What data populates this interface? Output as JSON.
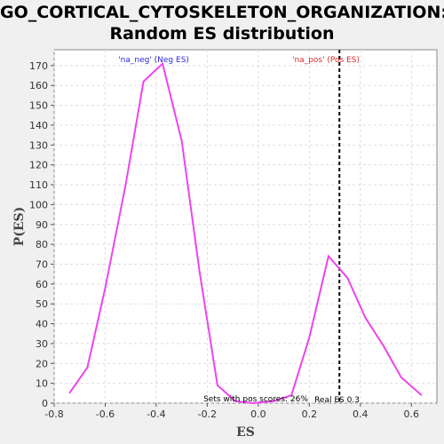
{
  "chart_data": {
    "type": "line",
    "title_line1": "GO_CORTICAL_CYTOSKELETON_ORGANIZATION:",
    "title_line2": "Random ES distribution",
    "xlabel": "ES",
    "ylabel": "P(ES)",
    "xlim": [
      -0.8,
      0.7
    ],
    "ylim": [
      0,
      178
    ],
    "x_ticks": [
      -0.8,
      -0.6,
      -0.4,
      -0.2,
      0.0,
      0.2,
      0.4,
      0.6
    ],
    "x_tick_labels": [
      "-0.8",
      "-0.6",
      "-0.4",
      "-0.2",
      "0.0",
      "0.2",
      "0.4",
      "0.6"
    ],
    "y_ticks": [
      0,
      10,
      20,
      30,
      40,
      50,
      60,
      70,
      80,
      90,
      100,
      110,
      120,
      130,
      140,
      150,
      160,
      170
    ],
    "grid": true,
    "series": [
      {
        "color": "#ee44ee",
        "x": [
          -0.74,
          -0.67,
          -0.6,
          -0.52,
          -0.45,
          -0.375,
          -0.3,
          -0.23,
          -0.16,
          -0.09,
          -0.02,
          0.06,
          0.13,
          0.2,
          0.275,
          0.35,
          0.42,
          0.49,
          0.56,
          0.64
        ],
        "y": [
          5,
          18,
          58,
          110,
          162,
          171,
          132,
          66,
          9,
          1,
          0,
          1,
          4,
          33,
          74,
          63,
          43,
          29,
          13,
          4
        ]
      }
    ],
    "real_es": 0.318,
    "real_es_label": "Real ES 0.3",
    "neg_label": "'na_neg' (Neg ES)",
    "pos_label": "'na_pos' (Pos ES)",
    "pos_scores_text": "Sets with pos scores: 26%",
    "colors": {
      "line": "#ee44ee",
      "neg_label": "#2a2ae0",
      "pos_label": "#e02a2a",
      "real_es_line": "#000000",
      "grid": "#dddddd"
    }
  }
}
